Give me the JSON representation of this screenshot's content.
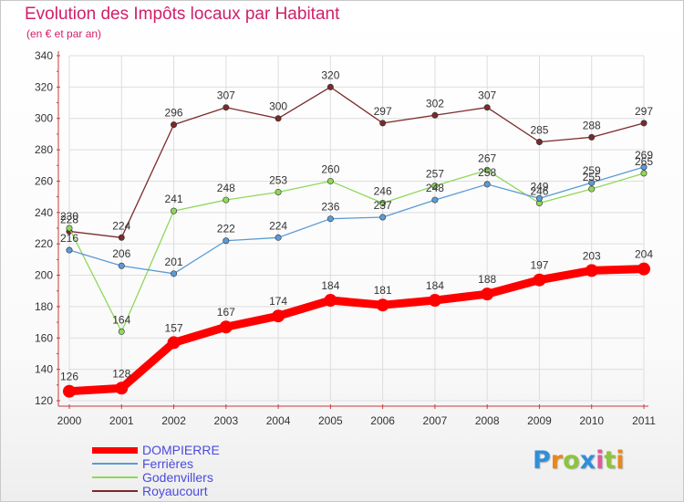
{
  "title": "Evolution des Impôts locaux par Habitant",
  "subtitle": "(en € et par an)",
  "logo": {
    "letters": [
      "P",
      "r",
      "o",
      "x",
      "i",
      "t",
      "i"
    ],
    "colors": [
      "#2f8fd8",
      "#e8881a",
      "#8cc43c",
      "#2f8fd8",
      "#e05a9a",
      "#8cc43c",
      "#e8881a"
    ]
  },
  "colors": {
    "title": "#d0206a",
    "axis": "#c83a3a",
    "grid": "#dddddd",
    "legend_text": "#4a4adf",
    "label_text": "#333333"
  },
  "chart_data": {
    "type": "line",
    "title": "Evolution des Impôts locaux par Habitant",
    "subtitle": "(en € et par an)",
    "xlabel": "",
    "ylabel": "",
    "x": [
      "2000",
      "2001",
      "2002",
      "2003",
      "2004",
      "2005",
      "2006",
      "2007",
      "2008",
      "2009",
      "2010",
      "2011"
    ],
    "ylim": [
      120,
      340
    ],
    "yticks": [
      120,
      140,
      160,
      180,
      200,
      220,
      240,
      260,
      280,
      300,
      320,
      340
    ],
    "grid": true,
    "legend_position": "bottom-left",
    "series": [
      {
        "name": "Royaucourt",
        "color": "#7a2a2a",
        "weight": "thin",
        "values": [
          228,
          224,
          296,
          307,
          300,
          320,
          297,
          302,
          307,
          285,
          288,
          297
        ],
        "labels": [
          "228",
          "224",
          "296",
          "307",
          "300",
          "320",
          "297",
          "302",
          "307",
          "285",
          "288",
          "297"
        ]
      },
      {
        "name": "Godenvillers",
        "color": "#8fd85a",
        "weight": "thin",
        "values": [
          230,
          164,
          241,
          248,
          253,
          260,
          246,
          257,
          267,
          246,
          255,
          265
        ],
        "labels": [
          "230",
          "164",
          "241",
          "248",
          "253",
          "260",
          "246",
          "257",
          "267",
          "246",
          "255",
          "265"
        ]
      },
      {
        "name": "Ferrières",
        "color": "#5b9bd5",
        "weight": "thin",
        "values": [
          216,
          206,
          201,
          222,
          224,
          236,
          237,
          248,
          258,
          249,
          259,
          269
        ],
        "labels": [
          "216",
          "206",
          "201",
          "222",
          "224",
          "236",
          "237",
          "248",
          "258",
          "249",
          "259",
          "269"
        ]
      },
      {
        "name": "DOMPIERRE",
        "color": "#ff0000",
        "weight": "thick",
        "values": [
          126,
          128,
          157,
          167,
          174,
          184,
          181,
          184,
          188,
          197,
          203,
          204
        ],
        "labels": [
          "126",
          "128",
          "157",
          "167",
          "174",
          "184",
          "181",
          "184",
          "188",
          "197",
          "203",
          "204"
        ]
      }
    ],
    "legend": [
      "DOMPIERRE",
      "Ferrières",
      "Godenvillers",
      "Royaucourt"
    ]
  }
}
